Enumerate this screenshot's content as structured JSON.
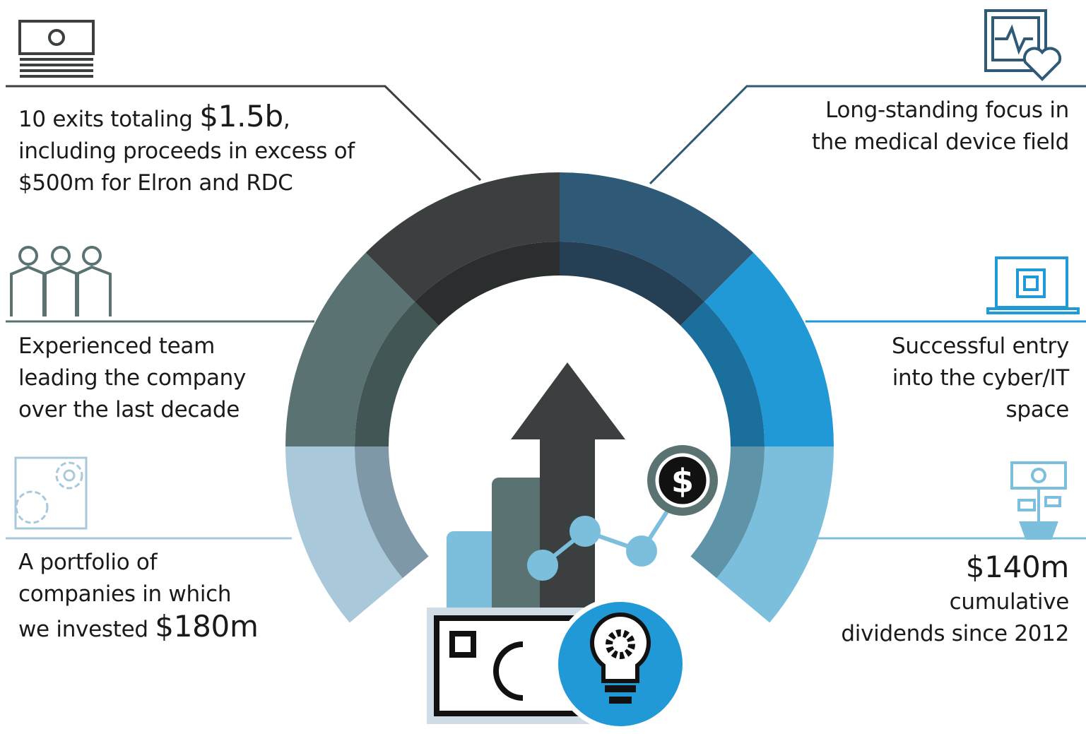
{
  "items": [
    {
      "line1": "10 exits totaling",
      "amount": "$1.5b",
      "line1_end": ",",
      "line2": "including proceeds in excess of",
      "line3": "$500m for Elron and RDC"
    },
    {
      "line1": "Long-standing focus in",
      "line2": "the medical device field"
    },
    {
      "line1": "Experienced team",
      "line2": "leading the company",
      "line3": "over the last decade"
    },
    {
      "line1": "Successful entry",
      "line2": "into the cyber/IT",
      "line3": "space"
    },
    {
      "line1": "A portfolio of",
      "line2": "companies in which",
      "line3": "we invested",
      "amount": "$180m"
    },
    {
      "amount": "$140m",
      "line2": "cumulative",
      "line3": "dividends since 2012"
    }
  ]
}
